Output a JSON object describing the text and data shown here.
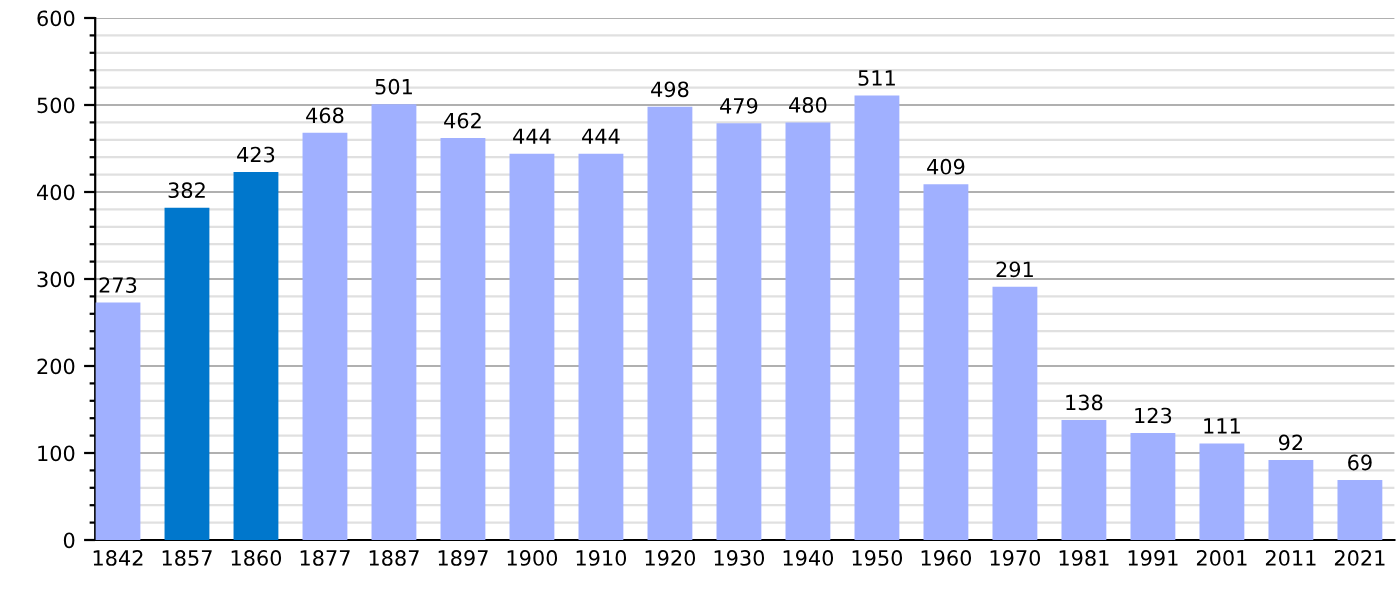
{
  "chart_data": {
    "type": "bar",
    "categories": [
      "1842",
      "1857",
      "1860",
      "1877",
      "1887",
      "1897",
      "1900",
      "1910",
      "1920",
      "1930",
      "1940",
      "1950",
      "1960",
      "1970",
      "1981",
      "1991",
      "2001",
      "2011",
      "2021"
    ],
    "values": [
      273,
      382,
      423,
      468,
      501,
      462,
      444,
      444,
      498,
      479,
      480,
      511,
      409,
      291,
      138,
      123,
      111,
      92,
      69
    ],
    "colors": [
      "#a0b0ff",
      "#0077cc",
      "#0077cc",
      "#a0b0ff",
      "#a0b0ff",
      "#a0b0ff",
      "#a0b0ff",
      "#a0b0ff",
      "#a0b0ff",
      "#a0b0ff",
      "#a0b0ff",
      "#a0b0ff",
      "#a0b0ff",
      "#a0b0ff",
      "#a0b0ff",
      "#a0b0ff",
      "#a0b0ff",
      "#a0b0ff",
      "#a0b0ff"
    ],
    "ylim": [
      0,
      600
    ],
    "yticks": [
      0,
      {
        "value": 20,
        "label": null
      },
      {
        "value": 40,
        "label": null
      },
      {
        "value": 60,
        "label": null
      },
      {
        "value": 80,
        "label": null
      },
      100,
      {
        "value": 120,
        "label": null
      },
      {
        "value": 140,
        "label": null
      },
      {
        "value": 160,
        "label": null
      },
      {
        "value": 180,
        "label": null
      },
      200,
      {
        "value": 220,
        "label": null
      },
      {
        "value": 240,
        "label": null
      },
      {
        "value": 260,
        "label": null
      },
      {
        "value": 280,
        "label": null
      },
      300,
      {
        "value": 320,
        "label": null
      },
      {
        "value": 340,
        "label": null
      },
      {
        "value": 360,
        "label": null
      },
      {
        "value": 380,
        "label": null
      },
      400,
      {
        "value": 420,
        "label": null
      },
      {
        "value": 440,
        "label": null
      },
      {
        "value": 460,
        "label": null
      },
      {
        "value": 480,
        "label": null
      },
      500,
      {
        "value": 520,
        "label": null
      },
      {
        "value": 540,
        "label": null
      },
      {
        "value": 560,
        "label": null
      },
      {
        "value": 580,
        "label": null
      },
      600
    ],
    "grid": "y",
    "data_labels": true
  }
}
